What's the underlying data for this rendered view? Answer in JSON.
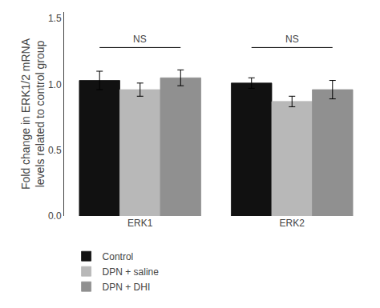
{
  "chart_data": {
    "type": "bar",
    "categories": [
      "ERK1",
      "ERK2"
    ],
    "series": [
      {
        "name": "Control",
        "color": "#111111",
        "values": [
          1.03,
          1.01
        ],
        "errors": [
          0.07,
          0.04
        ]
      },
      {
        "name": "DPN + saline",
        "color": "#b8b8b8",
        "values": [
          0.96,
          0.87
        ],
        "errors": [
          0.05,
          0.04
        ]
      },
      {
        "name": "DPN + DHI",
        "color": "#909090",
        "values": [
          1.05,
          0.96
        ],
        "errors": [
          0.06,
          0.07
        ]
      }
    ],
    "ylabel": "Fold change in ERK1/2 mRNA\nlevels related to control group",
    "ylim": [
      0.0,
      1.55
    ],
    "yticks": [
      {
        "value": 0.0,
        "label": "0.0"
      },
      0.5,
      {
        "value": 1.0,
        "label": "1.0"
      },
      1.5
    ],
    "annotations": [
      {
        "x": "ERK1",
        "y": 1.29,
        "line_y": 1.28,
        "text": "NS"
      },
      {
        "x": "ERK2",
        "y": 1.29,
        "line_y": 1.28,
        "text": "NS"
      }
    ],
    "grid": false,
    "legend": "bottom"
  }
}
